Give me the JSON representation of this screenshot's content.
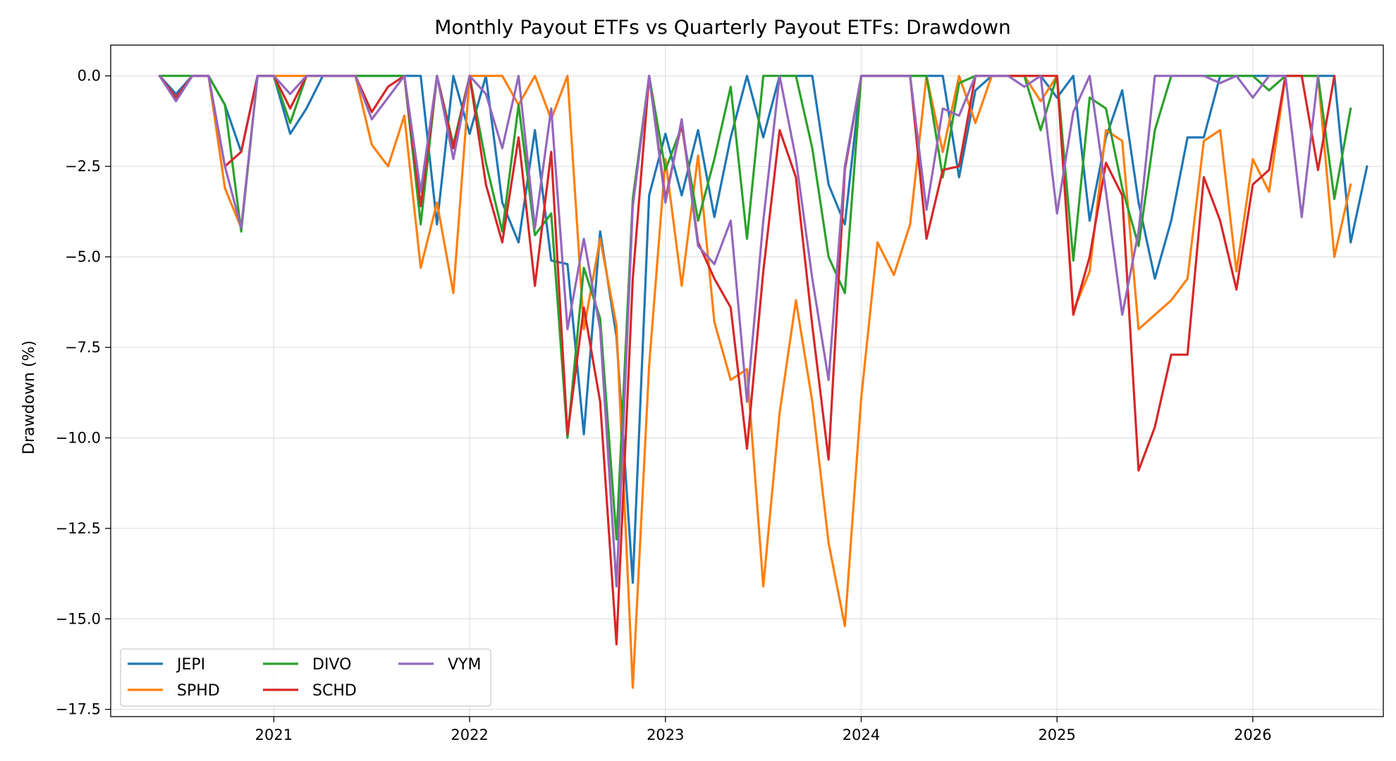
{
  "chart_data": {
    "type": "line",
    "title": "Monthly Payout ETFs vs Quarterly Payout ETFs: Drawdown",
    "xlabel": "",
    "ylabel": "Drawdown (%)",
    "x_start": "2020-06",
    "x_step": "month",
    "xlim": [
      "2020-03",
      "2026-09"
    ],
    "ylim": [
      -17.7,
      0.85
    ],
    "x_ticks": [
      "2021",
      "2022",
      "2023",
      "2024",
      "2025",
      "2026"
    ],
    "y_ticks": [
      0,
      -2.5,
      -5,
      -7.5,
      -10,
      -12.5,
      -15,
      -17.5
    ],
    "y_tick_labels": [
      "0.0",
      "−2.5",
      "−5.0",
      "−7.5",
      "−10.0",
      "−12.5",
      "−15.0",
      "−17.5"
    ],
    "grid": true,
    "legend": {
      "placement": "lower-left",
      "columns": 3
    },
    "series": [
      {
        "name": "JEPI",
        "color": "#1f77b4",
        "values": [
          0,
          -0.5,
          0,
          0,
          -0.8,
          -2.1,
          0,
          0,
          -1.6,
          -0.9,
          0,
          0,
          0,
          0,
          0,
          0,
          0,
          -4.1,
          0,
          -1.6,
          0,
          -3.5,
          -4.6,
          -1.5,
          -5.1,
          -5.2,
          -9.9,
          -4.3,
          -7.2,
          -14.0,
          -3.3,
          -1.6,
          -3.3,
          -1.5,
          -3.9,
          -1.7,
          0,
          -1.7,
          0,
          0,
          0,
          -3.0,
          -4.1,
          0,
          0,
          0,
          0,
          0,
          0,
          -2.8,
          -0.4,
          0,
          0,
          0,
          0,
          -0.6,
          0,
          -4.0,
          -1.7,
          -0.4,
          -3.5,
          -5.6,
          -4.0,
          -1.7,
          -1.7,
          0,
          0,
          0,
          0,
          0,
          0,
          0,
          0,
          -4.6,
          -2.5
        ]
      },
      {
        "name": "SPHD",
        "color": "#ff7f0e",
        "values": [
          0,
          -0.6,
          0,
          0,
          -3.1,
          -4.2,
          0,
          0,
          0,
          0,
          0,
          0,
          0,
          -1.9,
          -2.5,
          -1.1,
          -5.3,
          -3.5,
          -6.0,
          0,
          0,
          0,
          -0.8,
          0,
          -1.2,
          0,
          -7.0,
          -4.5,
          -6.9,
          -16.9,
          -8.0,
          -2.3,
          -5.8,
          -2.2,
          -6.8,
          -8.4,
          -8.1,
          -14.1,
          -9.3,
          -6.2,
          -9.0,
          -12.9,
          -15.2,
          -8.9,
          -4.6,
          -5.5,
          -4.1,
          0,
          -2.1,
          0,
          -1.3,
          0,
          0,
          0,
          -0.7,
          0,
          -6.5,
          -5.4,
          -1.5,
          -1.8,
          -7.0,
          -6.6,
          -6.2,
          -5.6,
          -1.8,
          -1.5,
          -5.4,
          -2.3,
          -3.2,
          0,
          0,
          0,
          -5.0,
          -3.0
        ]
      },
      {
        "name": "DIVO",
        "color": "#2ca02c",
        "values": [
          0,
          0,
          0,
          0,
          -0.8,
          -4.3,
          0,
          0,
          -1.3,
          0,
          0,
          0,
          0,
          0,
          0,
          0,
          -4.1,
          0,
          -1.9,
          0,
          -2.4,
          -4.3,
          -0.8,
          -4.4,
          -3.8,
          -10.0,
          -5.3,
          -6.7,
          -12.8,
          -3.4,
          0,
          -2.6,
          -1.4,
          -4.0,
          -2.3,
          -0.3,
          -4.5,
          0,
          0,
          0,
          -2.0,
          -5.0,
          -6.0,
          0,
          0,
          0,
          0,
          0,
          -2.8,
          -0.2,
          0,
          0,
          0,
          0,
          -1.5,
          0,
          -5.1,
          -0.6,
          -0.9,
          -3.1,
          -4.7,
          -1.5,
          0,
          0,
          0,
          0,
          0,
          0,
          -0.4,
          0,
          0,
          0,
          -3.4,
          -0.9
        ]
      },
      {
        "name": "SCHD",
        "color": "#d62728",
        "values": [
          0,
          -0.6,
          0,
          0,
          -2.5,
          -2.1,
          0,
          0,
          -0.9,
          0,
          0,
          0,
          0,
          -1.0,
          -0.3,
          0,
          -3.6,
          0,
          -2.0,
          0,
          -3.0,
          -4.6,
          -1.7,
          -5.8,
          -2.1,
          -9.9,
          -6.4,
          -9.0,
          -15.7,
          -5.6,
          0,
          -3.4,
          -1.3,
          -4.6,
          -5.6,
          -6.4,
          -10.3,
          -5.4,
          -1.5,
          -2.8,
          -6.9,
          -10.6,
          -2.6,
          0,
          0,
          0,
          0,
          -4.5,
          -2.6,
          -2.5,
          0,
          0,
          0,
          0,
          0,
          0,
          -6.6,
          -5.0,
          -2.4,
          -3.3,
          -10.9,
          -9.7,
          -7.7,
          -7.7,
          -2.8,
          -4.0,
          -5.9,
          -3.0,
          -2.6,
          0,
          0,
          -2.6,
          0
        ]
      },
      {
        "name": "VYM",
        "color": "#9467bd",
        "values": [
          0,
          -0.7,
          0,
          0,
          -2.5,
          -4.2,
          0,
          0,
          -0.5,
          0,
          0,
          0,
          0,
          -1.2,
          -0.6,
          0,
          -3.2,
          0,
          -2.3,
          0,
          -0.5,
          -2.0,
          0,
          -4.2,
          -0.9,
          -7.0,
          -4.5,
          -7.0,
          -14.1,
          -3.6,
          0,
          -3.5,
          -1.2,
          -4.7,
          -5.2,
          -4.0,
          -9.0,
          -4.0,
          0,
          -2.3,
          -5.6,
          -8.4,
          -2.5,
          0,
          0,
          0,
          0,
          -3.7,
          -0.9,
          -1.1,
          0,
          0,
          0,
          -0.3,
          0,
          -3.8,
          -1.0,
          0,
          -3.2,
          -6.6,
          -4.3,
          0,
          0,
          0,
          0,
          -0.2,
          0,
          -0.6,
          0,
          0,
          -3.9,
          0
        ]
      }
    ]
  }
}
